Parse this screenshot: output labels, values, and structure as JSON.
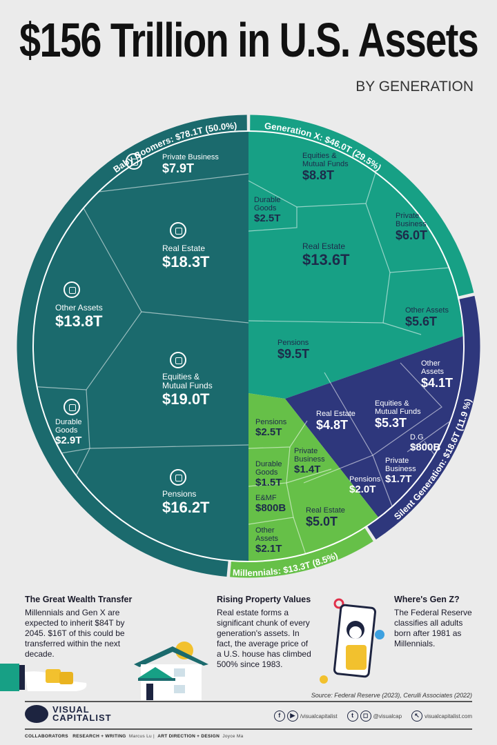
{
  "title": "$156 Trillion in U.S. Assets",
  "subtitle": "BY GENERATION",
  "colors": {
    "boomers": "#1b6a6d",
    "genx": "#17a085",
    "silent": "#2e377c",
    "millennials": "#66c048",
    "background": "#ebebeb"
  },
  "chart_data": {
    "type": "treemap",
    "title": "$156 Trillion in U.S. Assets",
    "subtitle": "BY GENERATION",
    "total": "$156 Trillion",
    "groups": [
      {
        "name": "Baby Boomers",
        "ring_label": "Baby Boomers: $78.1T (50.0%)",
        "value_t": 78.1,
        "share_pct": 50.0,
        "items": [
          {
            "name": "Private Business",
            "value": "$7.9T"
          },
          {
            "name": "Real Estate",
            "value": "$18.3T"
          },
          {
            "name": "Other Assets",
            "value": "$13.8T"
          },
          {
            "name": "Equities & Mutual Funds",
            "value": "$19.0T"
          },
          {
            "name": "Durable Goods",
            "value": "$2.9T"
          },
          {
            "name": "Pensions",
            "value": "$16.2T"
          }
        ]
      },
      {
        "name": "Generation X",
        "ring_label": "Generation X: $46.0T (29.5%)",
        "value_t": 46.0,
        "share_pct": 29.5,
        "items": [
          {
            "name": "Durable Goods",
            "value": "$2.5T"
          },
          {
            "name": "Equities & Mutual Funds",
            "value": "$8.8T"
          },
          {
            "name": "Private Business",
            "value": "$6.0T"
          },
          {
            "name": "Real Estate",
            "value": "$13.6T"
          },
          {
            "name": "Other Assets",
            "value": "$5.6T"
          },
          {
            "name": "Pensions",
            "value": "$9.5T"
          }
        ]
      },
      {
        "name": "Silent Generation",
        "ring_label": "Silent Generation: $18.6T (11.9 %)",
        "value_t": 18.6,
        "share_pct": 11.9,
        "items": [
          {
            "name": "Other Assets",
            "value": "$4.1T"
          },
          {
            "name": "Real Estate",
            "value": "$4.8T"
          },
          {
            "name": "Equities & Mutual Funds",
            "value": "$5.3T"
          },
          {
            "name": "D.G",
            "value": "$800B"
          },
          {
            "name": "Private Business",
            "value": "$1.7T"
          },
          {
            "name": "Pensions",
            "value": "$2.0T"
          }
        ]
      },
      {
        "name": "Millennials",
        "ring_label": "Millennials: $13.3T (8.5%)",
        "value_t": 13.3,
        "share_pct": 8.5,
        "items": [
          {
            "name": "Pensions",
            "value": "$2.5T"
          },
          {
            "name": "Private Business",
            "value": "$1.4T"
          },
          {
            "name": "Durable Goods",
            "value": "$1.5T"
          },
          {
            "name": "E&MF",
            "value": "$800B"
          },
          {
            "name": "Real Estate",
            "value": "$5.0T"
          },
          {
            "name": "Other Assets",
            "value": "$2.1T"
          }
        ]
      }
    ]
  },
  "notes": [
    {
      "heading": "The Great Wealth Transfer",
      "body": "Millennials and Gen X are expected to inherit $84T by 2045. $16T of this could be transferred within the next decade."
    },
    {
      "heading": "Rising Property Values",
      "body": "Real estate forms a significant chunk of every generation's assets. In fact, the average price of a U.S. house has climbed 500% since 1983."
    },
    {
      "heading": "Where's Gen Z?",
      "body": "The Federal Reserve classifies all adults born after 1981 as Millennials."
    }
  ],
  "source": "Source: Federal Reserve (2023), Cerulli Associates (2022)",
  "footer": {
    "logo": [
      "VISUAL",
      "CAPITALIST"
    ],
    "social": [
      {
        "icon": "facebook-icon",
        "glyph": "f"
      },
      {
        "icon": "youtube-icon",
        "glyph": "▶"
      },
      {
        "handle": "/visualcapitalist"
      },
      {
        "icon": "twitter-icon",
        "glyph": "t"
      },
      {
        "icon": "instagram-icon",
        "glyph": "◻"
      },
      {
        "handle": "@visualcap"
      },
      {
        "icon": "cursor-icon",
        "glyph": "↖"
      },
      {
        "handle": "visualcapitalist.com"
      }
    ],
    "collaborators_label": "COLLABORATORS",
    "research_label": "RESEARCH + WRITING",
    "research_name": "Marcus Lu",
    "design_label": "ART DIRECTION + DESIGN",
    "design_name": "Joyce Ma"
  }
}
